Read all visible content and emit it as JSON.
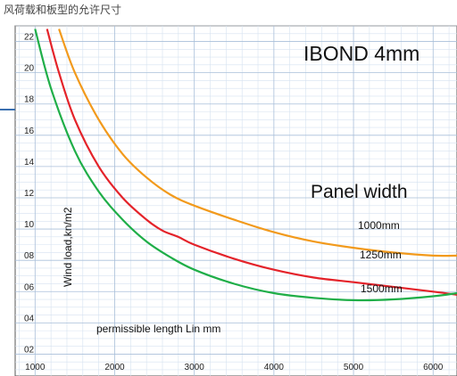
{
  "caption": "风荷载和板型的允许尺寸",
  "chart_data": {
    "type": "line",
    "title": "IBOND 4mm",
    "subtitle": "Panel width",
    "xlabel": "permissible length Lin mm",
    "ylabel": "Wind load,kn/m2",
    "xlim": [
      750,
      6300
    ],
    "ylim": [
      0.6,
      23.0
    ],
    "x_ticks": [
      "1000",
      "2000",
      "3000",
      "4000",
      "5000",
      "6000"
    ],
    "y_ticks": [
      "02",
      "04",
      "06",
      "08",
      "10",
      "12",
      "14",
      "16",
      "18",
      "20",
      "22"
    ],
    "x_tick_values": [
      1000,
      2000,
      3000,
      4000,
      5000,
      6000
    ],
    "y_tick_values": [
      2,
      4,
      6,
      8,
      10,
      12,
      14,
      16,
      18,
      20,
      22
    ],
    "grid": true,
    "series": [
      {
        "name": "1000mm",
        "color": "#f29a1c",
        "x": [
          1300,
          1500,
          1800,
          2100,
          2400,
          2700,
          3000,
          3500,
          4000,
          4500,
          5000,
          5500,
          6000,
          6300
        ],
        "y": [
          22.8,
          20.0,
          17.0,
          14.8,
          13.3,
          12.2,
          11.5,
          10.6,
          9.8,
          9.2,
          8.8,
          8.5,
          8.3,
          8.3
        ]
      },
      {
        "name": "1250mm",
        "color": "#e4232a",
        "x": [
          1150,
          1300,
          1500,
          1800,
          2100,
          2400,
          2600,
          2800,
          3000,
          3500,
          4000,
          4500,
          5000,
          5500,
          6000,
          6300
        ],
        "y": [
          22.8,
          20.0,
          17.0,
          14.0,
          12.0,
          10.6,
          9.9,
          9.5,
          9.0,
          8.1,
          7.4,
          6.9,
          6.6,
          6.3,
          6.0,
          5.8
        ]
      },
      {
        "name": "1500mm",
        "color": "#1fae48",
        "x": [
          1000,
          1200,
          1500,
          1800,
          2100,
          2400,
          2700,
          3000,
          3500,
          4000,
          4500,
          5000,
          5500,
          6000,
          6300
        ],
        "y": [
          22.8,
          19.0,
          15.0,
          12.4,
          10.6,
          9.2,
          8.2,
          7.4,
          6.5,
          5.9,
          5.6,
          5.45,
          5.5,
          5.7,
          5.9
        ]
      }
    ]
  }
}
